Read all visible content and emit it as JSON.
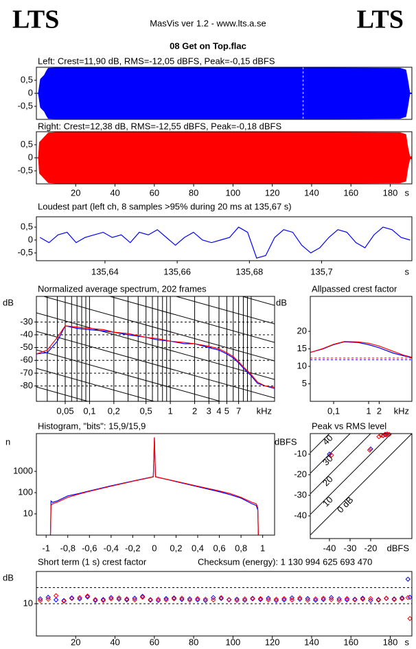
{
  "header": {
    "logo_left": "LTS",
    "title": "MasVis ver 1.2 - www.lts.a.se",
    "logo_right": "LTS",
    "file": "08 Get on Top.flac"
  },
  "chart_data": [
    {
      "type": "area",
      "title": "Left: Crest=11,90 dB, RMS=-12,05 dBFS, Peak=-0,15 dBFS",
      "color": "#0000ff",
      "x": [
        0,
        1,
        2,
        4,
        5,
        6,
        10,
        50,
        100,
        150,
        185,
        188,
        189,
        190,
        191
      ],
      "values": [
        0,
        0.02,
        0.55,
        0.7,
        0.85,
        0.97,
        0.98,
        0.98,
        0.98,
        0.98,
        0.97,
        0.9,
        0.5,
        0.02,
        0.02
      ],
      "xlim": [
        0,
        191
      ],
      "ylim": [
        -1,
        1
      ],
      "marker_x": 135.67,
      "yticks": [
        {
          "value": 0.5,
          "label": "0,5"
        },
        0,
        {
          "value": -0.5,
          "label": "-0,5"
        }
      ]
    },
    {
      "type": "area",
      "title": "Right: Crest=12,38 dB, RMS=-12,55 dBFS, Peak=-0,18 dBFS",
      "color": "#ff0000",
      "x": [
        0,
        1,
        1.5,
        4,
        5,
        6,
        10,
        50,
        100,
        150,
        185,
        188,
        189,
        190,
        191
      ],
      "values": [
        0,
        0.02,
        0.6,
        0.8,
        0.88,
        0.96,
        0.98,
        0.98,
        0.98,
        0.98,
        0.97,
        0.9,
        0.4,
        0.05,
        0.05
      ],
      "xlim": [
        0,
        191
      ],
      "ylim": [
        -1,
        1
      ],
      "xlabel": "s",
      "xticks": [
        20,
        40,
        60,
        80,
        100,
        120,
        140,
        160,
        180
      ],
      "yticks": [
        {
          "value": 0.5,
          "label": "0,5"
        },
        0,
        {
          "value": -0.5,
          "label": "-0,5"
        }
      ]
    },
    {
      "type": "line",
      "title": "Loudest part (left  ch, 8 samples >95% during 20 ms at 135,67 s)",
      "color": "#0000ff",
      "x": [
        135.622,
        135.6245,
        135.627,
        135.6295,
        135.632,
        135.6345,
        135.637,
        135.6395,
        135.642,
        135.6445,
        135.647,
        135.6495,
        135.652,
        135.6545,
        135.657,
        135.6595,
        135.662,
        135.6645,
        135.667,
        135.6695,
        135.672,
        135.6745,
        135.677,
        135.6795,
        135.682,
        135.6845,
        135.687,
        135.6895,
        135.692,
        135.6945,
        135.697,
        135.6995,
        135.702,
        135.7045,
        135.707,
        135.7095,
        135.712,
        135.7145,
        135.717,
        135.7195,
        135.722,
        135.7245
      ],
      "values": [
        0.1,
        -0.1,
        0.2,
        0.3,
        -0.1,
        0.1,
        0.2,
        0.3,
        0.1,
        0.2,
        -0.1,
        0.3,
        0.2,
        0.4,
        0.1,
        -0.2,
        0.1,
        0.3,
        0.0,
        -0.1,
        0.0,
        0.1,
        0.5,
        0.3,
        -0.7,
        -0.6,
        0.1,
        0.4,
        0.3,
        -0.2,
        -0.5,
        -0.3,
        0.1,
        0.4,
        0.3,
        -0.1,
        -0.3,
        0.2,
        0.5,
        0.4,
        0.1,
        0.0
      ],
      "xlim": [
        135.621,
        135.725
      ],
      "ylim": [
        -0.8,
        0.9
      ],
      "xlabel": "s",
      "xticks": [
        {
          "value": 135.64,
          "label": "135,64"
        },
        {
          "value": 135.66,
          "label": "135,66"
        },
        {
          "value": 135.68,
          "label": "135,68"
        },
        {
          "value": 135.7,
          "label": "135,7"
        }
      ],
      "yticks": [
        {
          "value": 0.5,
          "label": "0,5"
        },
        0,
        {
          "value": -0.5,
          "label": "-0,5"
        }
      ]
    },
    {
      "type": "line",
      "title": "Normalized average spectrum, 202 frames",
      "xscale": "log",
      "grid": true,
      "diagonal_grid": true,
      "x": [
        0.022,
        0.03,
        0.04,
        0.05,
        0.07,
        0.1,
        0.15,
        0.2,
        0.3,
        0.5,
        0.7,
        1,
        1.5,
        2,
        3,
        4,
        5,
        6,
        7,
        8,
        10,
        12,
        15,
        19.5
      ],
      "series": [
        {
          "color": "#0000ff",
          "values": [
            -55,
            -54,
            -45,
            -33,
            -35,
            -36,
            -37,
            -38,
            -40,
            -42,
            -44,
            -45,
            -47,
            -47,
            -50,
            -52,
            -55,
            -58,
            -62,
            -66,
            -72,
            -78,
            -80,
            -82
          ]
        },
        {
          "color": "#ff0000",
          "values": [
            -55,
            -52,
            -42,
            -33,
            -34,
            -35,
            -36,
            -38,
            -39,
            -42,
            -43,
            -45,
            -46,
            -47,
            -49,
            -51,
            -54,
            -57,
            -61,
            -65,
            -71,
            -77,
            -80,
            -81
          ]
        }
      ],
      "xlim": [
        0.022,
        19.5
      ],
      "ylim": [
        -92,
        -10
      ],
      "xlabel": "kHz",
      "ylabel": "dB",
      "xticks": [
        {
          "value": 0.05,
          "label": "0,05"
        },
        {
          "value": 0.1,
          "label": "0,1"
        },
        {
          "value": 0.2,
          "label": "0,2"
        },
        {
          "value": 0.5,
          "label": "0,5"
        },
        1,
        2,
        3,
        4,
        5,
        7
      ],
      "yticks": [
        -30,
        -40,
        -50,
        -60,
        -70,
        -80
      ]
    },
    {
      "type": "line",
      "title": "Allpassed crest factor",
      "xscale": "log",
      "x": [
        0.022,
        0.05,
        0.1,
        0.2,
        0.5,
        1,
        2,
        5,
        10,
        17
      ],
      "series": [
        {
          "color": "#0000ff",
          "values": [
            14,
            15,
            16.2,
            17,
            16.8,
            16.2,
            15.3,
            13.8,
            13,
            12.5
          ]
        },
        {
          "color": "#ff0000",
          "values": [
            14,
            15.1,
            16.3,
            17.1,
            17,
            16.6,
            15.8,
            14.3,
            13.2,
            12.6
          ]
        }
      ],
      "reference_lines": [
        {
          "value": 11.9,
          "color": "#0000ff"
        },
        {
          "value": 12.38,
          "color": "#ff0000"
        }
      ],
      "xlim": [
        0.0215,
        17.2
      ],
      "ylim": [
        0,
        30
      ],
      "xlabel": "kHz",
      "ylabel": "dB",
      "xticks": [
        {
          "value": 0.1,
          "label": "0,1"
        },
        1,
        2
      ],
      "yticks": [
        5,
        10,
        15,
        20
      ]
    },
    {
      "type": "line",
      "title": "Histogram, \"bits\": 15,9/15,9",
      "yscale": "log",
      "x": [
        -0.96,
        -0.955,
        -0.94,
        -0.9,
        -0.8,
        -0.7,
        -0.6,
        -0.4,
        -0.2,
        -0.01,
        0,
        0.01,
        0.2,
        0.4,
        0.6,
        0.7,
        0.8,
        0.9,
        0.94,
        0.955,
        0.96
      ],
      "series": [
        {
          "color": "#0000ff",
          "values": [
            1,
            40,
            35,
            40,
            70,
            90,
            120,
            210,
            350,
            560,
            40000,
            560,
            330,
            190,
            110,
            80,
            55,
            30,
            25,
            15,
            1
          ]
        },
        {
          "color": "#ff0000",
          "values": [
            1,
            25,
            30,
            35,
            60,
            85,
            115,
            200,
            340,
            550,
            40000,
            550,
            340,
            200,
            120,
            90,
            60,
            35,
            30,
            20,
            1
          ]
        }
      ],
      "xlim": [
        -1.09,
        1.11
      ],
      "ylim": [
        1,
        60000
      ],
      "ylabel": "n",
      "xticks": [
        -1,
        {
          "value": -0.8,
          "label": "-0,8"
        },
        {
          "value": -0.6,
          "label": "-0,6"
        },
        {
          "value": -0.4,
          "label": "-0,4"
        },
        {
          "value": -0.2,
          "label": "-0,2"
        },
        0,
        {
          "value": 0.2,
          "label": "0,2"
        },
        {
          "value": 0.4,
          "label": "0,4"
        },
        {
          "value": 0.6,
          "label": "0,6"
        },
        {
          "value": 0.8,
          "label": "0,8"
        },
        1
      ],
      "yticks": [
        10,
        100,
        1000
      ]
    },
    {
      "type": "scatter",
      "title": "Peak vs RMS level",
      "marker": "diamond",
      "diagonals": [
        {
          "value": 40,
          "label": "40"
        },
        {
          "value": 30,
          "label": "30"
        },
        {
          "value": 20,
          "label": "20"
        },
        {
          "value": 10,
          "label": "10"
        },
        {
          "value": 0,
          "label": "0 dB"
        }
      ],
      "series": [
        {
          "color": "#0000ff",
          "x": [
            -13,
            -12,
            -20,
            -40,
            -14
          ],
          "values": [
            -0.5,
            -0.3,
            -7.5,
            -10,
            -1
          ]
        },
        {
          "color": "#ff0000",
          "x": [
            -15,
            -14,
            -12.5,
            -13,
            -12,
            -20.5,
            -39,
            -16,
            -11
          ],
          "values": [
            -0.8,
            -1,
            -0.6,
            -0.3,
            -0.2,
            -8,
            -10.5,
            -1.5,
            -0.4
          ]
        }
      ],
      "xlim": [
        -49.3,
        0
      ],
      "ylim": [
        -51,
        0
      ],
      "xlabel": "dBFS",
      "ylabel": "dBFS",
      "xticks": [
        -40,
        -30,
        -20
      ],
      "yticks": [
        -10,
        -20,
        -30,
        -40
      ]
    },
    {
      "type": "scatter",
      "title": "Short term (1 s) crest factor",
      "annotation": "Checksum (energy):  1 130 994 625 693 470",
      "marker": "diamond",
      "reference_lines": [
        {
          "value": 10,
          "color": "#000000"
        },
        {
          "value": 15,
          "color": "#000000"
        }
      ],
      "x": [
        2,
        6,
        10,
        14,
        18,
        22,
        26,
        30,
        34,
        38,
        42,
        46,
        50,
        54,
        58,
        62,
        66,
        70,
        74,
        78,
        82,
        86,
        90,
        94,
        98,
        102,
        106,
        110,
        114,
        118,
        122,
        126,
        130,
        134,
        138,
        142,
        146,
        150,
        154,
        158,
        162,
        166,
        170,
        174,
        178,
        182,
        186,
        189,
        190
      ],
      "series": [
        {
          "color": "#0000ff",
          "values": [
            11.5,
            12,
            11.2,
            11,
            11.8,
            11.5,
            12.1,
            11,
            11.3,
            11.9,
            11.4,
            11.2,
            11.7,
            12.3,
            11.1,
            11,
            11.6,
            11.8,
            11.3,
            11.5,
            11.2,
            11,
            11.9,
            11.6,
            11.2,
            11.4,
            11.1,
            11.5,
            11.3,
            11.7,
            11,
            11.2,
            11.8,
            11.4,
            11.6,
            11.1,
            11.3,
            11.9,
            11.5,
            11.2,
            11.4,
            11.7,
            11,
            11.3,
            11.6,
            11.5,
            11.8,
            17.6,
            12
          ]
        },
        {
          "color": "#ff0000",
          "values": [
            11,
            11.4,
            12.5,
            10.8,
            11.6,
            11.9,
            12.4,
            11.3,
            11,
            11.5,
            11.8,
            11.5,
            11.2,
            12,
            11.3,
            11.4,
            11.2,
            11.5,
            11.7,
            11.1,
            11.6,
            11.4,
            11.2,
            11.9,
            11.3,
            11,
            11.5,
            11.7,
            11.6,
            11.2,
            11.4,
            11.6,
            11.2,
            11.8,
            11.1,
            11.5,
            11.7,
            11.3,
            11,
            11.6,
            11.2,
            11.4,
            11.6,
            11.1,
            11.7,
            11.3,
            11.5,
            11.9,
            5.4
          ]
        }
      ],
      "xlim": [
        0,
        191
      ],
      "ylim": [
        0,
        20
      ],
      "xlabel": "s",
      "ylabel": "dB",
      "xticks": [
        20,
        40,
        60,
        80,
        100,
        120,
        140,
        160,
        180
      ],
      "yticks": [
        10
      ]
    }
  ]
}
